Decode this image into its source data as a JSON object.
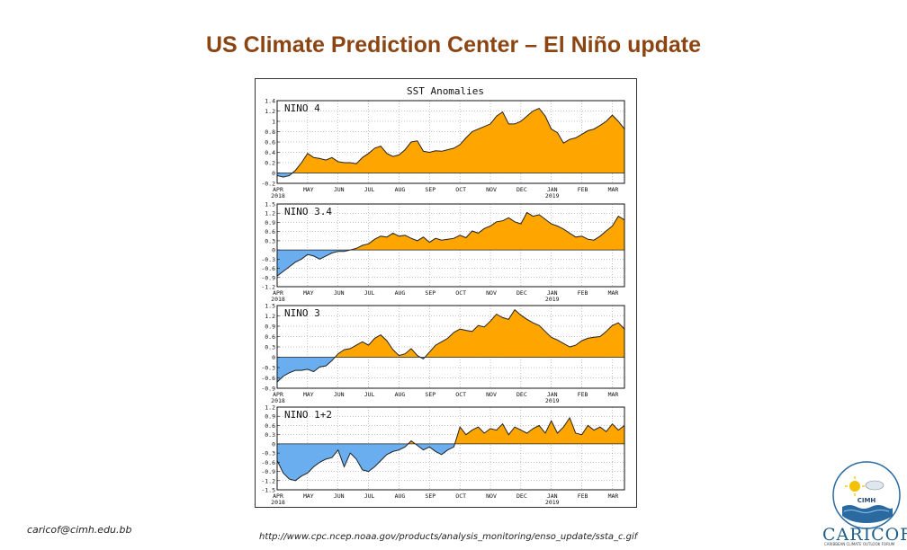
{
  "slide": {
    "title": "US Climate Prediction Center – El Niño update",
    "footer_email": "caricof@cimh.edu.bb",
    "footer_url": "http://www.cpc.ncep.noaa.gov/products/analysis_monitoring/enso_update/ssta_c.gif",
    "logo_text": "CARICOF",
    "logo_subtext": "CARIBBEAN CLIMATE OUTLOOK FORUM",
    "cimh_label": "CIMH"
  },
  "colors": {
    "title": "#8b4513",
    "positive": "#ffa500",
    "negative": "#6aaef0",
    "line": "#222222"
  },
  "chart_data": {
    "type": "area",
    "title": "SST Anomalies",
    "months": [
      "APR",
      "MAY",
      "JUN",
      "JUL",
      "AUG",
      "SEP",
      "OCT",
      "NOV",
      "DEC",
      "JAN",
      "FEB",
      "MAR"
    ],
    "year_labels": [
      "2018",
      "2019"
    ],
    "x_range": [
      0,
      11.4
    ],
    "panels": [
      {
        "name": "NINO 4",
        "ylim": [
          -0.2,
          1.4
        ],
        "yticks": [
          "1.4",
          "1.2",
          "1",
          "0.8",
          "0.6",
          "0.4",
          "0.2",
          "0",
          "-0.2"
        ],
        "ytick_values": [
          1.4,
          1.2,
          1.0,
          0.8,
          0.6,
          0.4,
          0.2,
          0,
          -0.2
        ],
        "x": [
          0,
          0.2,
          0.4,
          0.6,
          0.8,
          1.0,
          1.2,
          1.4,
          1.6,
          1.8,
          2.0,
          2.2,
          2.4,
          2.6,
          2.8,
          3.0,
          3.2,
          3.4,
          3.6,
          3.8,
          4.0,
          4.2,
          4.4,
          4.6,
          4.8,
          5.0,
          5.2,
          5.4,
          5.6,
          5.8,
          6.0,
          6.2,
          6.4,
          6.6,
          6.8,
          7.0,
          7.2,
          7.4,
          7.6,
          7.8,
          8.0,
          8.2,
          8.4,
          8.6,
          8.8,
          9.0,
          9.2,
          9.4,
          9.6,
          9.8,
          10.0,
          10.2,
          10.4,
          10.6,
          10.8,
          11.0,
          11.2,
          11.4
        ],
        "values": [
          -0.05,
          -0.08,
          -0.05,
          0.05,
          0.2,
          0.38,
          0.3,
          0.28,
          0.25,
          0.3,
          0.22,
          0.2,
          0.2,
          0.18,
          0.3,
          0.38,
          0.48,
          0.52,
          0.38,
          0.32,
          0.35,
          0.45,
          0.6,
          0.62,
          0.42,
          0.4,
          0.43,
          0.42,
          0.45,
          0.48,
          0.55,
          0.68,
          0.8,
          0.85,
          0.9,
          0.95,
          1.1,
          1.18,
          0.95,
          0.95,
          1.0,
          1.1,
          1.2,
          1.25,
          1.1,
          0.85,
          0.78,
          0.58,
          0.65,
          0.68,
          0.75,
          0.82,
          0.85,
          0.92,
          1.0,
          1.12,
          1.0,
          0.85
        ]
      },
      {
        "name": "NINO 3.4",
        "ylim": [
          -1.2,
          1.5
        ],
        "yticks": [
          "1.5",
          "1.2",
          "0.9",
          "0.6",
          "0.3",
          "0",
          "-0.3",
          "-0.6",
          "-0.9",
          "-1.2"
        ],
        "ytick_values": [
          1.5,
          1.2,
          0.9,
          0.6,
          0.3,
          0,
          -0.3,
          -0.6,
          -0.9,
          -1.2
        ],
        "x": [
          0,
          0.2,
          0.4,
          0.6,
          0.8,
          1.0,
          1.2,
          1.4,
          1.6,
          1.8,
          2.0,
          2.2,
          2.4,
          2.6,
          2.8,
          3.0,
          3.2,
          3.4,
          3.6,
          3.8,
          4.0,
          4.2,
          4.4,
          4.6,
          4.8,
          5.0,
          5.2,
          5.4,
          5.6,
          5.8,
          6.0,
          6.2,
          6.4,
          6.6,
          6.8,
          7.0,
          7.2,
          7.4,
          7.6,
          7.8,
          8.0,
          8.2,
          8.4,
          8.6,
          8.8,
          9.0,
          9.2,
          9.4,
          9.6,
          9.8,
          10.0,
          10.2,
          10.4,
          10.6,
          10.8,
          11.0,
          11.2,
          11.4
        ],
        "values": [
          -0.85,
          -0.7,
          -0.55,
          -0.4,
          -0.3,
          -0.15,
          -0.2,
          -0.3,
          -0.2,
          -0.1,
          -0.05,
          -0.05,
          0.0,
          0.05,
          0.15,
          0.2,
          0.35,
          0.45,
          0.42,
          0.55,
          0.45,
          0.48,
          0.38,
          0.3,
          0.42,
          0.25,
          0.38,
          0.32,
          0.35,
          0.38,
          0.48,
          0.4,
          0.62,
          0.55,
          0.7,
          0.78,
          0.92,
          0.95,
          1.05,
          0.92,
          0.85,
          1.22,
          1.1,
          1.15,
          1.0,
          0.85,
          0.78,
          0.68,
          0.55,
          0.42,
          0.45,
          0.35,
          0.32,
          0.45,
          0.62,
          0.78,
          1.1,
          0.98
        ]
      },
      {
        "name": "NINO 3",
        "ylim": [
          -0.9,
          1.5
        ],
        "yticks": [
          "1.5",
          "1.2",
          "0.9",
          "0.6",
          "0.3",
          "0",
          "-0.3",
          "-0.6",
          "-0.9"
        ],
        "ytick_values": [
          1.5,
          1.2,
          0.9,
          0.6,
          0.3,
          0,
          -0.3,
          -0.6,
          -0.9
        ],
        "x": [
          0,
          0.2,
          0.4,
          0.6,
          0.8,
          1.0,
          1.2,
          1.4,
          1.6,
          1.8,
          2.0,
          2.2,
          2.4,
          2.6,
          2.8,
          3.0,
          3.2,
          3.4,
          3.6,
          3.8,
          4.0,
          4.2,
          4.4,
          4.6,
          4.8,
          5.0,
          5.2,
          5.4,
          5.6,
          5.8,
          6.0,
          6.2,
          6.4,
          6.6,
          6.8,
          7.0,
          7.2,
          7.4,
          7.6,
          7.8,
          8.0,
          8.2,
          8.4,
          8.6,
          8.8,
          9.0,
          9.2,
          9.4,
          9.6,
          9.8,
          10.0,
          10.2,
          10.4,
          10.6,
          10.8,
          11.0,
          11.2,
          11.4
        ],
        "values": [
          -0.72,
          -0.55,
          -0.45,
          -0.38,
          -0.38,
          -0.35,
          -0.42,
          -0.28,
          -0.25,
          -0.1,
          0.1,
          0.22,
          0.25,
          0.35,
          0.45,
          0.35,
          0.55,
          0.65,
          0.48,
          0.22,
          0.05,
          0.1,
          0.25,
          0.05,
          -0.05,
          0.15,
          0.35,
          0.45,
          0.55,
          0.72,
          0.82,
          0.78,
          0.75,
          0.92,
          0.88,
          1.05,
          1.25,
          1.15,
          1.1,
          1.38,
          1.22,
          1.1,
          1.0,
          0.92,
          0.75,
          0.58,
          0.5,
          0.4,
          0.3,
          0.35,
          0.48,
          0.55,
          0.58,
          0.6,
          0.75,
          0.92,
          1.0,
          0.82
        ]
      },
      {
        "name": "NINO 1+2",
        "ylim": [
          -1.5,
          1.2
        ],
        "yticks": [
          "1.2",
          "0.9",
          "0.6",
          "0.3",
          "0",
          "-0.3",
          "-0.6",
          "-0.9",
          "-1.2",
          "-1.5"
        ],
        "ytick_values": [
          1.2,
          0.9,
          0.6,
          0.3,
          0,
          -0.3,
          -0.6,
          -0.9,
          -1.2,
          -1.5
        ],
        "x": [
          0,
          0.2,
          0.4,
          0.6,
          0.8,
          1.0,
          1.2,
          1.4,
          1.6,
          1.8,
          2.0,
          2.2,
          2.4,
          2.6,
          2.8,
          3.0,
          3.2,
          3.4,
          3.6,
          3.8,
          4.0,
          4.2,
          4.4,
          4.6,
          4.8,
          5.0,
          5.2,
          5.4,
          5.6,
          5.8,
          6.0,
          6.2,
          6.4,
          6.6,
          6.8,
          7.0,
          7.2,
          7.4,
          7.6,
          7.8,
          8.0,
          8.2,
          8.4,
          8.6,
          8.8,
          9.0,
          9.2,
          9.4,
          9.6,
          9.8,
          10.0,
          10.2,
          10.4,
          10.6,
          10.8,
          11.0,
          11.2,
          11.4
        ],
        "values": [
          -0.55,
          -0.95,
          -1.15,
          -1.2,
          -1.05,
          -0.95,
          -0.75,
          -0.6,
          -0.5,
          -0.45,
          -0.2,
          -0.75,
          -0.3,
          -0.5,
          -0.85,
          -0.9,
          -0.75,
          -0.55,
          -0.35,
          -0.25,
          -0.2,
          -0.1,
          0.1,
          -0.05,
          -0.2,
          -0.1,
          -0.25,
          -0.35,
          -0.2,
          -0.1,
          0.55,
          0.3,
          0.45,
          0.55,
          0.35,
          0.5,
          0.45,
          0.65,
          0.3,
          0.55,
          0.45,
          0.35,
          0.5,
          0.6,
          0.35,
          0.75,
          0.35,
          0.55,
          0.85,
          0.35,
          0.3,
          0.6,
          0.45,
          0.55,
          0.4,
          0.65,
          0.45,
          0.6
        ]
      }
    ]
  }
}
